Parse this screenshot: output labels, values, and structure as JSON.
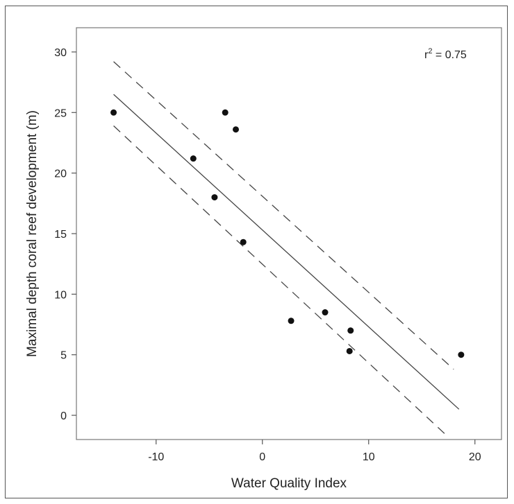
{
  "chart_data": {
    "type": "scatter",
    "xlabel": "Water Quality Index",
    "ylabel": "Maximal depth coral reef development (m)",
    "annotation": {
      "text_base": "r",
      "text_sup": "2",
      "text_rest": " = 0.75"
    },
    "xlim": [
      -17.5,
      22.5
    ],
    "ylim": [
      -2,
      32
    ],
    "x_ticks": [
      -10,
      0,
      10,
      20
    ],
    "y_ticks": [
      0,
      5,
      10,
      15,
      20,
      25,
      30
    ],
    "points": [
      {
        "x": -14.0,
        "y": 25.0
      },
      {
        "x": -6.5,
        "y": 21.2
      },
      {
        "x": -4.5,
        "y": 18.0
      },
      {
        "x": -3.5,
        "y": 25.0
      },
      {
        "x": -2.5,
        "y": 23.6
      },
      {
        "x": -1.8,
        "y": 14.3
      },
      {
        "x": 2.7,
        "y": 7.8
      },
      {
        "x": 5.9,
        "y": 8.5
      },
      {
        "x": 8.2,
        "y": 5.3
      },
      {
        "x": 8.3,
        "y": 7.0
      },
      {
        "x": 18.7,
        "y": 5.0
      }
    ],
    "fit_line": {
      "x": [
        -14.0,
        18.5
      ],
      "y": [
        26.5,
        0.5
      ]
    },
    "confidence_band": {
      "upper": {
        "x": [
          -14.0,
          18.0
        ],
        "y": [
          29.2,
          3.8
        ]
      },
      "lower": {
        "x": [
          -14.0,
          17.5
        ],
        "y": [
          23.9,
          -1.8
        ]
      }
    },
    "grid": false,
    "legend": "none"
  }
}
